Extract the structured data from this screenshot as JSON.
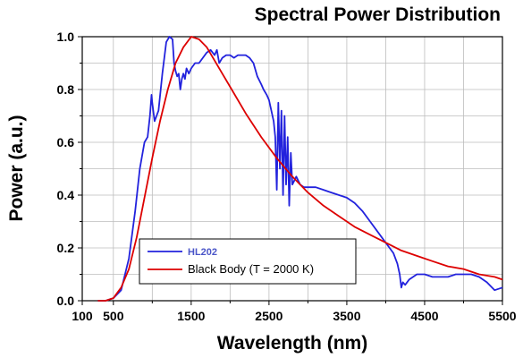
{
  "chart_data": {
    "type": "line",
    "title": "Spectral Power Distribution",
    "xlabel": "Wavelength (nm)",
    "ylabel": "Power (a.u.)",
    "xlim": [
      100,
      5500
    ],
    "ylim": [
      0.0,
      1.0
    ],
    "x_ticks": [
      100,
      500,
      1500,
      2500,
      3500,
      4500,
      5500
    ],
    "y_ticks": [
      0.0,
      0.2,
      0.4,
      0.6,
      0.8,
      1.0
    ],
    "y_tick_labels": [
      "0.0",
      "0.2",
      "0.4",
      "0.6",
      "0.8",
      "1.0"
    ],
    "grid": true,
    "legend_position": "bottom-left",
    "colors": {
      "HL202": "#2222dd",
      "black_body": "#dd0000"
    },
    "series": [
      {
        "name": "HL202",
        "x": [
          300,
          400,
          500,
          600,
          700,
          780,
          840,
          900,
          940,
          970,
          990,
          1000,
          1030,
          1080,
          1130,
          1180,
          1220,
          1260,
          1280,
          1300,
          1320,
          1340,
          1360,
          1380,
          1400,
          1420,
          1440,
          1470,
          1500,
          1550,
          1600,
          1650,
          1700,
          1750,
          1800,
          1830,
          1860,
          1900,
          1950,
          2000,
          2050,
          2100,
          2150,
          2200,
          2250,
          2300,
          2350,
          2400,
          2430,
          2470,
          2500,
          2530,
          2560,
          2580,
          2600,
          2620,
          2640,
          2660,
          2680,
          2700,
          2720,
          2740,
          2760,
          2780,
          2800,
          2850,
          2900,
          2950,
          3000,
          3100,
          3200,
          3300,
          3400,
          3500,
          3600,
          3700,
          3800,
          3900,
          4000,
          4100,
          4150,
          4180,
          4200,
          4220,
          4250,
          4300,
          4400,
          4500,
          4600,
          4700,
          4800,
          4900,
          5000,
          5100,
          5200,
          5300,
          5400,
          5500
        ],
        "values": [
          0.0,
          0.0,
          0.01,
          0.04,
          0.16,
          0.34,
          0.5,
          0.6,
          0.62,
          0.7,
          0.78,
          0.75,
          0.68,
          0.72,
          0.86,
          0.98,
          1.0,
          0.99,
          0.9,
          0.87,
          0.85,
          0.86,
          0.8,
          0.84,
          0.86,
          0.84,
          0.88,
          0.86,
          0.88,
          0.9,
          0.9,
          0.92,
          0.94,
          0.95,
          0.93,
          0.95,
          0.9,
          0.92,
          0.93,
          0.93,
          0.92,
          0.93,
          0.93,
          0.93,
          0.92,
          0.9,
          0.85,
          0.82,
          0.8,
          0.78,
          0.76,
          0.72,
          0.68,
          0.62,
          0.42,
          0.75,
          0.5,
          0.72,
          0.4,
          0.7,
          0.44,
          0.62,
          0.36,
          0.56,
          0.44,
          0.47,
          0.44,
          0.43,
          0.43,
          0.43,
          0.42,
          0.41,
          0.4,
          0.39,
          0.37,
          0.34,
          0.3,
          0.26,
          0.22,
          0.18,
          0.14,
          0.1,
          0.05,
          0.07,
          0.06,
          0.08,
          0.1,
          0.1,
          0.09,
          0.09,
          0.09,
          0.1,
          0.1,
          0.1,
          0.09,
          0.07,
          0.04,
          0.05
        ]
      },
      {
        "name": "Black Body (T = 2000 K)",
        "x": [
          300,
          400,
          500,
          600,
          700,
          800,
          900,
          1000,
          1100,
          1200,
          1300,
          1400,
          1500,
          1600,
          1700,
          1800,
          1900,
          2000,
          2200,
          2400,
          2600,
          2800,
          3000,
          3200,
          3400,
          3600,
          3800,
          4000,
          4200,
          4400,
          4600,
          4800,
          5000,
          5200,
          5400,
          5500
        ],
        "values": [
          0.0,
          0.0,
          0.01,
          0.05,
          0.12,
          0.24,
          0.39,
          0.54,
          0.68,
          0.8,
          0.9,
          0.96,
          1.0,
          0.99,
          0.96,
          0.91,
          0.86,
          0.81,
          0.71,
          0.62,
          0.54,
          0.47,
          0.41,
          0.36,
          0.32,
          0.28,
          0.25,
          0.22,
          0.19,
          0.17,
          0.15,
          0.13,
          0.12,
          0.1,
          0.09,
          0.08
        ]
      }
    ]
  }
}
